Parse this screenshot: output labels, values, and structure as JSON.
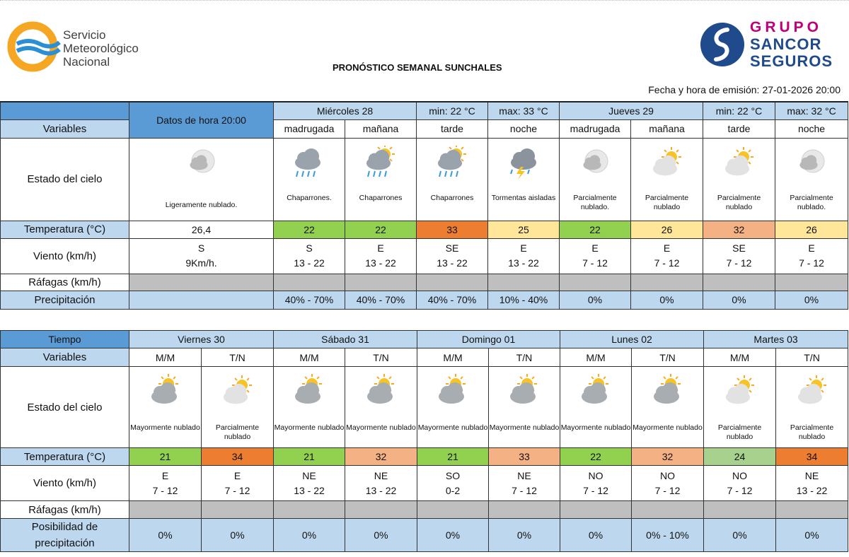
{
  "header": {
    "org_line1": "Servicio",
    "org_line2": "Meteorológico",
    "org_line3": "Nacional",
    "title": "PRONÓSTICO SEMANAL SUNCHALES",
    "sponsor_line1": "GRUPO",
    "sponsor_line2": "SANCOR",
    "sponsor_line3": "SEGUROS",
    "emission_label": "Fecha y hora de emisión:",
    "emission_value": "27-01-2026 20:00"
  },
  "colors": {
    "header_blue": "#5b9bd5",
    "label_blue": "#bdd7ee",
    "gray": "#bfbfbf"
  },
  "top": {
    "variables_label": "Variables",
    "current_label": "Datos de hora 20:00",
    "days": [
      {
        "name": "Miércoles 28",
        "min": "min: 22 °C",
        "max": "max: 33 °C"
      },
      {
        "name": "Jueves 29",
        "min": "min: 22 °C",
        "max": "max: 32 °C"
      }
    ],
    "periods": [
      "madrugada",
      "mañana",
      "tarde",
      "noche",
      "madrugada",
      "mañana",
      "tarde",
      "noche"
    ],
    "rows": {
      "sky": "Estado del cielo",
      "temp": "Temperatura (°C)",
      "wind": "Viento (km/h)",
      "gust": "Ráfagas (km/h)",
      "precip": "Precipitación"
    },
    "current": {
      "sky_icon": "moon-cloud-icon",
      "sky_desc": "Ligeramente nublado.",
      "temp": "26,4",
      "wind_dir": "S",
      "wind_speed": "9Km/h."
    },
    "cells": [
      {
        "icon": "rain-cloud-icon",
        "desc": "Chaparrones.",
        "temp": "22",
        "temp_color": "green",
        "wind_dir": "S",
        "wind_speed": "13 - 22",
        "precip": "40% - 70%"
      },
      {
        "icon": "sun-rain-icon",
        "desc": "Chaparrones",
        "temp": "22",
        "temp_color": "green",
        "wind_dir": "E",
        "wind_speed": "13 - 22",
        "precip": "40% - 70%"
      },
      {
        "icon": "sun-rain-icon",
        "desc": "Chaparrones",
        "temp": "33",
        "temp_color": "orange",
        "wind_dir": "SE",
        "wind_speed": "13 - 22",
        "precip": "40% - 70%"
      },
      {
        "icon": "storm-icon",
        "desc": "Tormentas aisladas",
        "temp": "25",
        "temp_color": "yellow",
        "wind_dir": "E",
        "wind_speed": "13 - 22",
        "precip": "10% - 40%"
      },
      {
        "icon": "moon-cloud-icon",
        "desc": "Parcialmente nublado.",
        "temp": "22",
        "temp_color": "green",
        "wind_dir": "E",
        "wind_speed": "7 - 12",
        "precip": "0%"
      },
      {
        "icon": "sun-cloud-icon",
        "desc": "Parcialmente nublado",
        "temp": "26",
        "temp_color": "yellow",
        "wind_dir": "E",
        "wind_speed": "7 - 12",
        "precip": "0%"
      },
      {
        "icon": "sun-cloud-icon",
        "desc": "Parcialmente nublado",
        "temp": "32",
        "temp_color": "lorange",
        "wind_dir": "SE",
        "wind_speed": "7 - 12",
        "precip": "0%"
      },
      {
        "icon": "moon-cloud-icon",
        "desc": "Parcialmente nublado.",
        "temp": "26",
        "temp_color": "yellow",
        "wind_dir": "E",
        "wind_speed": "7 - 12",
        "precip": "0%"
      }
    ]
  },
  "bottom": {
    "tiempo_label": "Tiempo",
    "variables_label": "Variables",
    "rows": {
      "sky": "Estado del cielo",
      "temp": "Temperatura (°C)",
      "wind": "Viento (km/h)",
      "gust": "Ráfagas (km/h)",
      "precip_line1": "Posibilidad de",
      "precip_line2": "precipitación"
    },
    "days": [
      {
        "name": "Viernes 30"
      },
      {
        "name": "Sábado 31"
      },
      {
        "name": "Domingo 01"
      },
      {
        "name": "Lunes 02"
      },
      {
        "name": "Martes 03"
      }
    ],
    "periods": [
      "M/M",
      "T/N",
      "M/M",
      "T/N",
      "M/M",
      "T/N",
      "M/M",
      "T/N",
      "M/M",
      "T/N"
    ],
    "cells": [
      {
        "icon": "mostly-cloudy-icon",
        "desc": "Mayormente nublado",
        "temp": "21",
        "temp_color": "green",
        "wind_dir": "E",
        "wind_speed": "7 - 12",
        "precip": "0%"
      },
      {
        "icon": "sun-cloud-icon",
        "desc": "Parcialmente nublado",
        "temp": "34",
        "temp_color": "orange",
        "wind_dir": "E",
        "wind_speed": "7 - 12",
        "precip": "0%"
      },
      {
        "icon": "mostly-cloudy-icon",
        "desc": "Mayormente nublado",
        "temp": "21",
        "temp_color": "green",
        "wind_dir": "NE",
        "wind_speed": "13 - 22",
        "precip": "0%"
      },
      {
        "icon": "mostly-cloudy-icon",
        "desc": "Mayormente nublado",
        "temp": "32",
        "temp_color": "lorange",
        "wind_dir": "NE",
        "wind_speed": "13 - 22",
        "precip": "0%"
      },
      {
        "icon": "mostly-cloudy-icon",
        "desc": "Mayormente nublado",
        "temp": "21",
        "temp_color": "green",
        "wind_dir": "SO",
        "wind_speed": "0-2",
        "precip": "0%"
      },
      {
        "icon": "mostly-cloudy-icon",
        "desc": "Mayormente nublado",
        "temp": "33",
        "temp_color": "lorange",
        "wind_dir": "NE",
        "wind_speed": "7 - 12",
        "precip": "0%"
      },
      {
        "icon": "mostly-cloudy-icon",
        "desc": "Mayormente nublado",
        "temp": "22",
        "temp_color": "green",
        "wind_dir": "NO",
        "wind_speed": "7 - 12",
        "precip": "0%"
      },
      {
        "icon": "mostly-cloudy-icon",
        "desc": "Mayormente nublado",
        "temp": "32",
        "temp_color": "lorange",
        "wind_dir": "NO",
        "wind_speed": "7 - 12",
        "precip": "0% - 10%"
      },
      {
        "icon": "sun-cloud-icon",
        "desc": "Parcialmente nublado",
        "temp": "24",
        "temp_color": "lgreen",
        "wind_dir": "NO",
        "wind_speed": "7 - 12",
        "precip": "0%"
      },
      {
        "icon": "sun-cloud-icon",
        "desc": "Parcialmente nublado",
        "temp": "34",
        "temp_color": "orange",
        "wind_dir": "NE",
        "wind_speed": "13 - 22",
        "precip": "0%"
      }
    ]
  }
}
